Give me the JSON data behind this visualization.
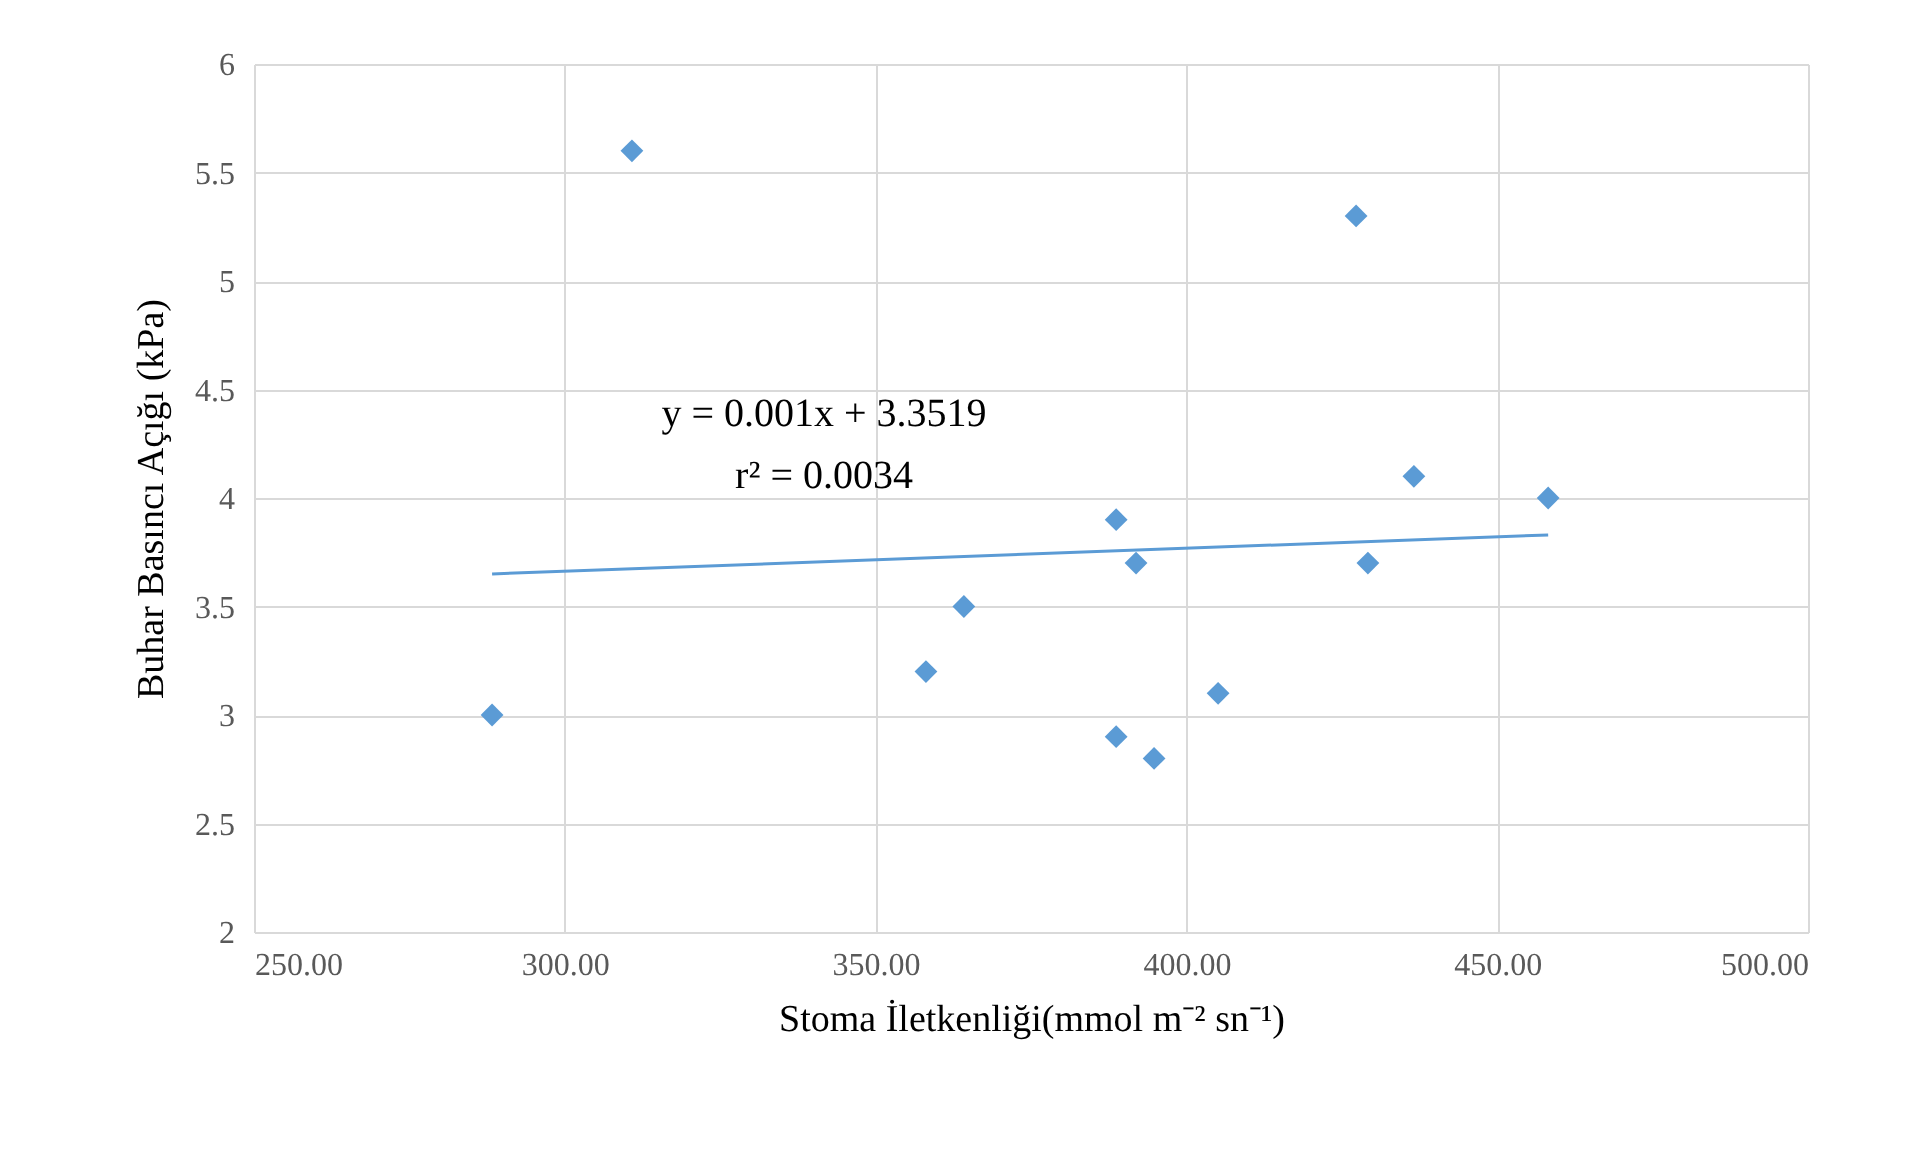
{
  "chart_data": {
    "type": "scatter",
    "xlabel": "Stoma İletkenliği(mmol m⁻² sn⁻¹)",
    "ylabel": "Buhar Basıncı Açığı (kPa)",
    "xlim": [
      250,
      500
    ],
    "xticks": [
      {
        "value": 250,
        "label": "250.00"
      },
      {
        "value": 300,
        "label": "300.00"
      },
      {
        "value": 350,
        "label": "350.00"
      },
      {
        "value": 400,
        "label": "400.00"
      },
      {
        "value": 450,
        "label": "450.00"
      },
      {
        "value": 500,
        "label": "500.00"
      }
    ],
    "ylim": [
      2,
      6
    ],
    "yticks": [
      2,
      2.5,
      3,
      3.5,
      4,
      4.5,
      5,
      5.5,
      6
    ],
    "grid": true,
    "annotations": [
      "y = 0.001x + 3.3519",
      "r² = 0.0034"
    ],
    "series": [
      {
        "marker": "diamond",
        "color": "#5b9bd5",
        "x": [
          288.3,
          310.8,
          358.1,
          364.2,
          388.7,
          388.7,
          391.9,
          394.8,
          405.1,
          427.3,
          429.2,
          436.6,
          458.2
        ],
        "values": [
          3.0,
          5.6,
          3.2,
          3.5,
          3.9,
          2.9,
          3.7,
          2.8,
          3.1,
          5.3,
          3.7,
          4.1,
          4.0
        ]
      },
      {
        "type": "line",
        "color": "#5b9bd5",
        "x": [
          288.3,
          458.2
        ],
        "values": [
          3.65,
          3.83
        ]
      }
    ]
  }
}
